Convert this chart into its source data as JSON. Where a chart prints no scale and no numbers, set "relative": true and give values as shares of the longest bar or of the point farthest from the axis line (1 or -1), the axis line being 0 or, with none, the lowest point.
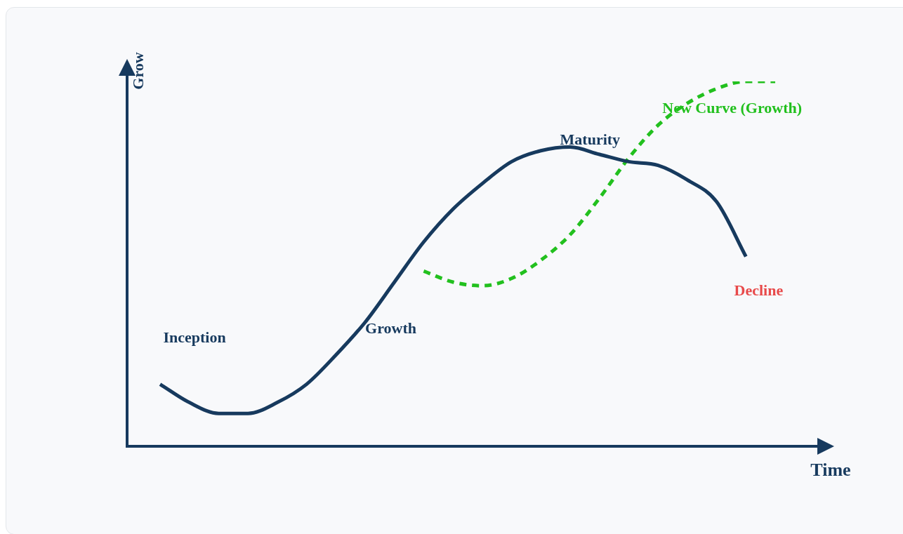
{
  "chart_data": {
    "type": "line",
    "relative": true,
    "xlabel": "Time",
    "ylabel": "Grow",
    "categories": [
      null,
      null,
      null,
      null,
      null,
      null,
      null,
      null,
      null,
      null,
      null,
      null,
      null,
      null,
      null,
      null,
      null,
      null,
      null,
      null,
      null,
      null
    ],
    "series": [
      {
        "color": "#173a5e",
        "line_style": "solid",
        "values": [
          0.17,
          0.12,
          0.09,
          0.09,
          0.12,
          0.17,
          0.25,
          0.34,
          0.45,
          0.56,
          0.65,
          0.72,
          0.78,
          0.81,
          0.82,
          0.8,
          0.78,
          0.77,
          0.73,
          0.67,
          0.52,
          null
        ]
      },
      {
        "name": "New Curve (Growth)",
        "color": "#22c01e",
        "line_style": "dashed",
        "values": [
          null,
          null,
          null,
          null,
          null,
          null,
          null,
          null,
          null,
          0.48,
          0.45,
          0.44,
          0.46,
          0.51,
          0.58,
          0.68,
          0.79,
          0.88,
          0.94,
          0.98,
          1.0,
          1.0
        ]
      }
    ],
    "annotations": [
      "Inception",
      "Growth",
      "Maturity",
      "Decline"
    ],
    "grid": false,
    "legend": false,
    "marker": "none"
  }
}
